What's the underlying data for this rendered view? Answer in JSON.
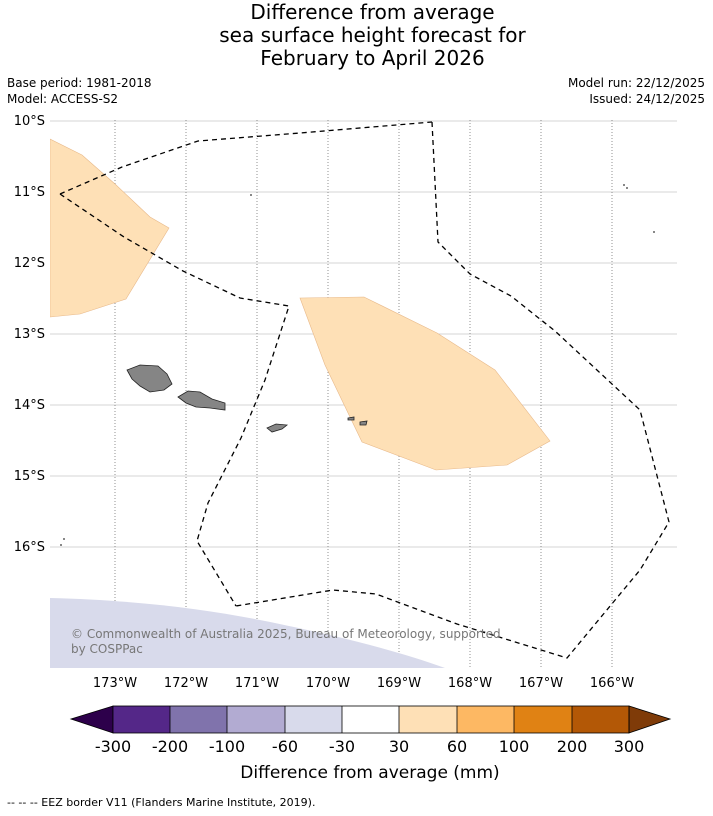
{
  "title": {
    "line1": "Difference from average",
    "line2": "sea surface height forecast for",
    "line3": "February to April 2026"
  },
  "meta": {
    "base_period": "Base period: 1981-2018",
    "model": "Model: ACCESS-S2",
    "model_run": "Model run: 22/12/2025",
    "issued": "Issued: 24/12/2025"
  },
  "map": {
    "latitude_labels": [
      "10°S",
      "11°S",
      "12°S",
      "13°S",
      "14°S",
      "15°S",
      "16°S"
    ],
    "longitude_labels": [
      "173°W",
      "172°W",
      "171°W",
      "170°W",
      "169°W",
      "168°W",
      "167°W",
      "166°W"
    ],
    "copyright_line1": "© Commonwealth of Australia 2025, Bureau of Meteorology, supported",
    "copyright_line2": "by COSPPac"
  },
  "colorbar": {
    "title": "Difference from average (mm)",
    "tick_labels": [
      "-300",
      "-200",
      "-100",
      "-60",
      "-30",
      "30",
      "60",
      "100",
      "200",
      "300"
    ],
    "colors": [
      "#2d004b",
      "#542788",
      "#8073ac",
      "#b2abd2",
      "#d8daeb",
      "#ffffff",
      "#fee0b6",
      "#fdb863",
      "#e08214",
      "#b35806",
      "#7f3b08"
    ]
  },
  "footer": {
    "legend_text": "--  --  -- EEZ border V11 (Flanders Marine Institute, 2019)."
  }
}
